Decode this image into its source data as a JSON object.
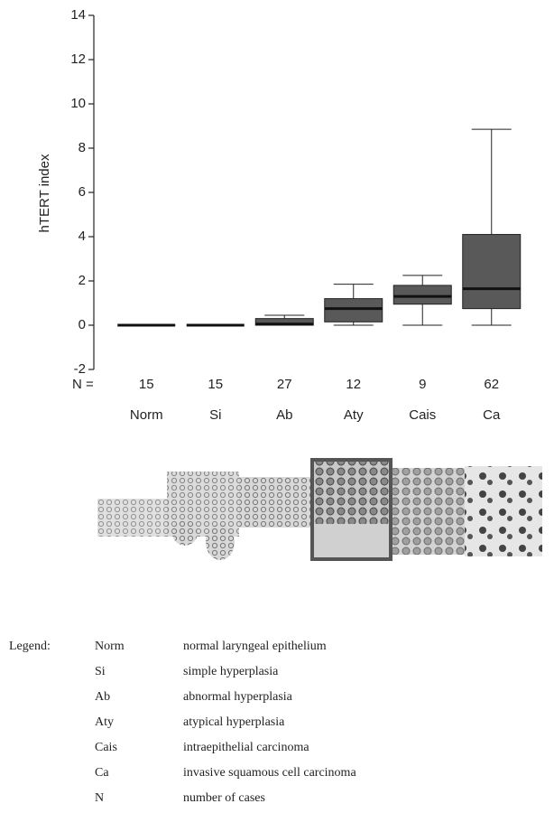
{
  "chart_data": {
    "type": "box",
    "y_label": "hTERT index",
    "categories": [
      "Norm",
      "Si",
      "Ab",
      "Aty",
      "Cais",
      "Ca"
    ],
    "n_label": "N =",
    "n": [
      15,
      15,
      27,
      12,
      9,
      62
    ],
    "min": [
      0,
      0,
      0,
      0,
      0,
      0
    ],
    "q1": [
      0,
      0,
      0,
      0.15,
      0.95,
      0.75
    ],
    "median": [
      0,
      0,
      0.05,
      0.75,
      1.3,
      1.65
    ],
    "q3": [
      0,
      0,
      0.3,
      1.2,
      1.8,
      4.1
    ],
    "max": [
      0,
      0,
      0.45,
      1.85,
      2.25,
      8.85
    ],
    "color": "#595959",
    "ylim": [
      -2,
      14
    ],
    "yticks": [
      -2,
      0,
      2,
      4,
      6,
      8,
      10,
      12,
      14
    ]
  },
  "legend": {
    "title": "Legend:",
    "items": [
      {
        "abbr": "Norm",
        "text": "normal laryngeal epithelium"
      },
      {
        "abbr": "Si",
        "text": "simple hyperplasia"
      },
      {
        "abbr": "Ab",
        "text": "abnormal hyperplasia"
      },
      {
        "abbr": "Aty",
        "text": "atypical hyperplasia"
      },
      {
        "abbr": "Cais",
        "text": "intraepithelial carcinoma"
      },
      {
        "abbr": "Ca",
        "text": "invasive squamous cell carcinoma"
      },
      {
        "abbr": "N",
        "text": "number of cases"
      }
    ]
  }
}
